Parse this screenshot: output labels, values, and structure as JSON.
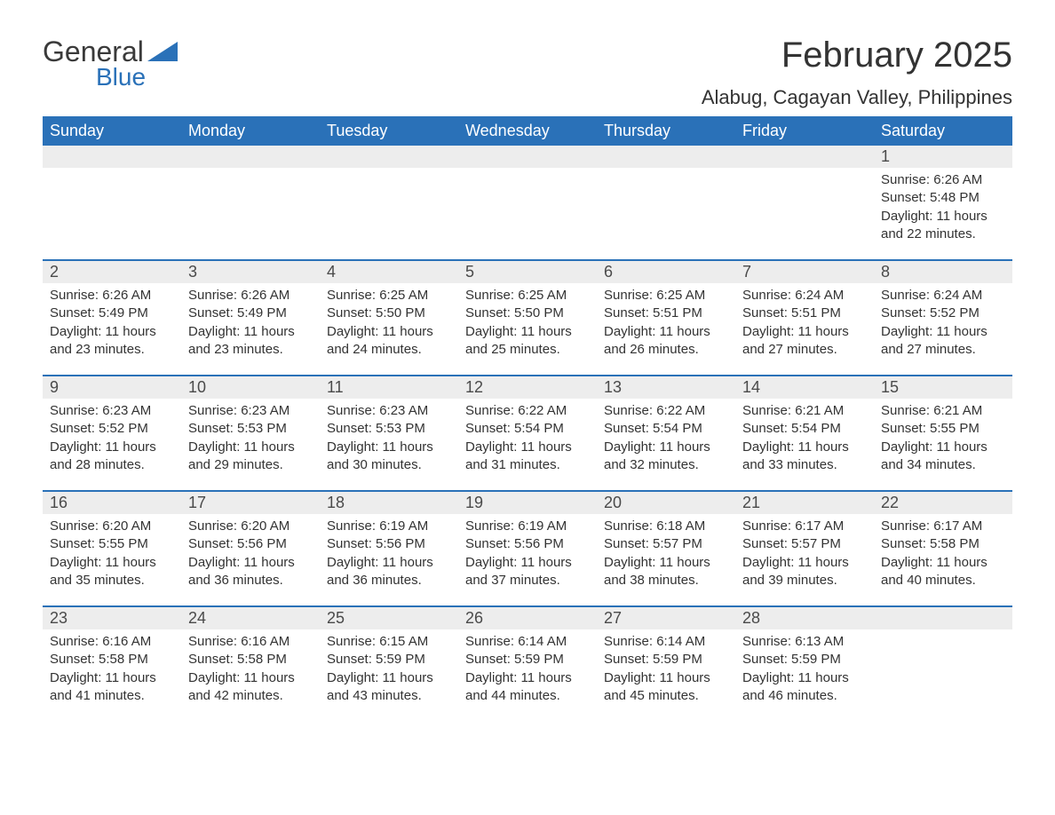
{
  "logo": {
    "word1": "General",
    "word2": "Blue",
    "brand_color": "#2a71b8",
    "text_color": "#3a3a3a"
  },
  "header": {
    "title": "February 2025",
    "location": "Alabug, Cagayan Valley, Philippines"
  },
  "colors": {
    "header_bg": "#2a71b8",
    "header_text": "#ffffff",
    "daynum_bg": "#ededed",
    "row_divider": "#2a71b8",
    "body_text": "#333333",
    "background": "#ffffff"
  },
  "weekdays": [
    "Sunday",
    "Monday",
    "Tuesday",
    "Wednesday",
    "Thursday",
    "Friday",
    "Saturday"
  ],
  "labels": {
    "sunrise": "Sunrise:",
    "sunset": "Sunset:",
    "daylight": "Daylight:"
  },
  "weeks": [
    [
      null,
      null,
      null,
      null,
      null,
      null,
      {
        "day": "1",
        "sunrise": "6:26 AM",
        "sunset": "5:48 PM",
        "daylight": "11 hours and 22 minutes."
      }
    ],
    [
      {
        "day": "2",
        "sunrise": "6:26 AM",
        "sunset": "5:49 PM",
        "daylight": "11 hours and 23 minutes."
      },
      {
        "day": "3",
        "sunrise": "6:26 AM",
        "sunset": "5:49 PM",
        "daylight": "11 hours and 23 minutes."
      },
      {
        "day": "4",
        "sunrise": "6:25 AM",
        "sunset": "5:50 PM",
        "daylight": "11 hours and 24 minutes."
      },
      {
        "day": "5",
        "sunrise": "6:25 AM",
        "sunset": "5:50 PM",
        "daylight": "11 hours and 25 minutes."
      },
      {
        "day": "6",
        "sunrise": "6:25 AM",
        "sunset": "5:51 PM",
        "daylight": "11 hours and 26 minutes."
      },
      {
        "day": "7",
        "sunrise": "6:24 AM",
        "sunset": "5:51 PM",
        "daylight": "11 hours and 27 minutes."
      },
      {
        "day": "8",
        "sunrise": "6:24 AM",
        "sunset": "5:52 PM",
        "daylight": "11 hours and 27 minutes."
      }
    ],
    [
      {
        "day": "9",
        "sunrise": "6:23 AM",
        "sunset": "5:52 PM",
        "daylight": "11 hours and 28 minutes."
      },
      {
        "day": "10",
        "sunrise": "6:23 AM",
        "sunset": "5:53 PM",
        "daylight": "11 hours and 29 minutes."
      },
      {
        "day": "11",
        "sunrise": "6:23 AM",
        "sunset": "5:53 PM",
        "daylight": "11 hours and 30 minutes."
      },
      {
        "day": "12",
        "sunrise": "6:22 AM",
        "sunset": "5:54 PM",
        "daylight": "11 hours and 31 minutes."
      },
      {
        "day": "13",
        "sunrise": "6:22 AM",
        "sunset": "5:54 PM",
        "daylight": "11 hours and 32 minutes."
      },
      {
        "day": "14",
        "sunrise": "6:21 AM",
        "sunset": "5:54 PM",
        "daylight": "11 hours and 33 minutes."
      },
      {
        "day": "15",
        "sunrise": "6:21 AM",
        "sunset": "5:55 PM",
        "daylight": "11 hours and 34 minutes."
      }
    ],
    [
      {
        "day": "16",
        "sunrise": "6:20 AM",
        "sunset": "5:55 PM",
        "daylight": "11 hours and 35 minutes."
      },
      {
        "day": "17",
        "sunrise": "6:20 AM",
        "sunset": "5:56 PM",
        "daylight": "11 hours and 36 minutes."
      },
      {
        "day": "18",
        "sunrise": "6:19 AM",
        "sunset": "5:56 PM",
        "daylight": "11 hours and 36 minutes."
      },
      {
        "day": "19",
        "sunrise": "6:19 AM",
        "sunset": "5:56 PM",
        "daylight": "11 hours and 37 minutes."
      },
      {
        "day": "20",
        "sunrise": "6:18 AM",
        "sunset": "5:57 PM",
        "daylight": "11 hours and 38 minutes."
      },
      {
        "day": "21",
        "sunrise": "6:17 AM",
        "sunset": "5:57 PM",
        "daylight": "11 hours and 39 minutes."
      },
      {
        "day": "22",
        "sunrise": "6:17 AM",
        "sunset": "5:58 PM",
        "daylight": "11 hours and 40 minutes."
      }
    ],
    [
      {
        "day": "23",
        "sunrise": "6:16 AM",
        "sunset": "5:58 PM",
        "daylight": "11 hours and 41 minutes."
      },
      {
        "day": "24",
        "sunrise": "6:16 AM",
        "sunset": "5:58 PM",
        "daylight": "11 hours and 42 minutes."
      },
      {
        "day": "25",
        "sunrise": "6:15 AM",
        "sunset": "5:59 PM",
        "daylight": "11 hours and 43 minutes."
      },
      {
        "day": "26",
        "sunrise": "6:14 AM",
        "sunset": "5:59 PM",
        "daylight": "11 hours and 44 minutes."
      },
      {
        "day": "27",
        "sunrise": "6:14 AM",
        "sunset": "5:59 PM",
        "daylight": "11 hours and 45 minutes."
      },
      {
        "day": "28",
        "sunrise": "6:13 AM",
        "sunset": "5:59 PM",
        "daylight": "11 hours and 46 minutes."
      },
      null
    ]
  ]
}
